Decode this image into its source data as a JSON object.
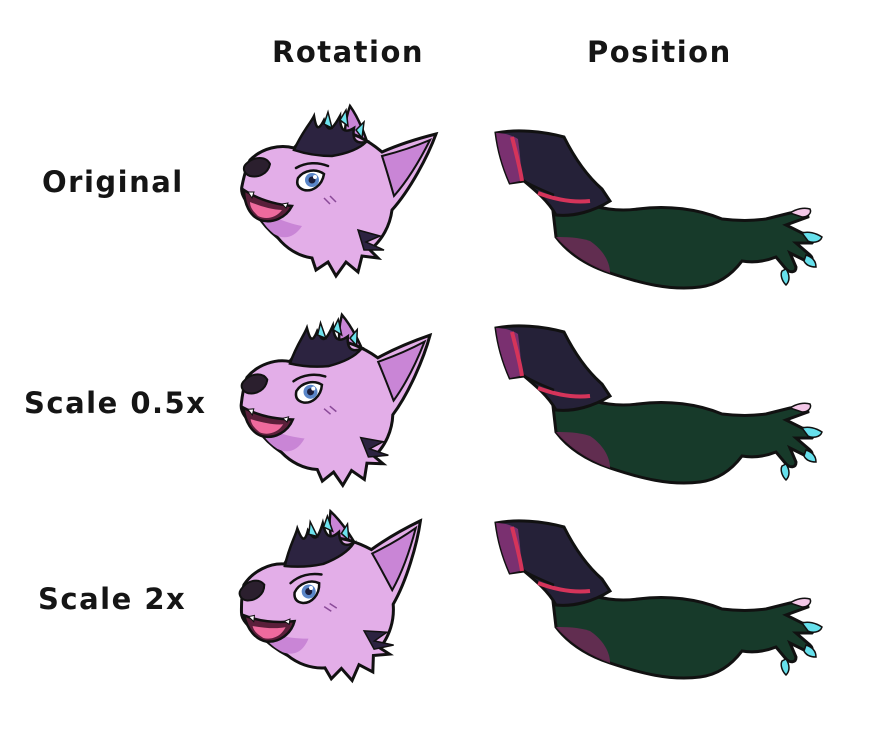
{
  "columns": {
    "rotation": "Rotation",
    "position": "Position"
  },
  "rows": {
    "original": "Original",
    "half": "Scale 0.5x",
    "double": "Scale 2x"
  },
  "colors": {
    "fur_light": "#e3aee8",
    "fur_mid": "#c985d6",
    "fur_shadow": "#a65fb8",
    "hair_dark": "#2c2340",
    "hair_accent": "#6ee3ee",
    "eye": "#5a86c8",
    "mouth": "#5a1f3a",
    "tongue": "#ee6a9d",
    "nose": "#2b1f2e",
    "sleeve_dark": "#252138",
    "sleeve_purple": "#7a3070",
    "sleeve_stripe": "#d5345a",
    "skin_green": "#173a2a",
    "skin_purple": "#6e2c57",
    "claw": "#f4c7e8",
    "claw_tip": "#66e0ec",
    "outline": "#111111"
  }
}
